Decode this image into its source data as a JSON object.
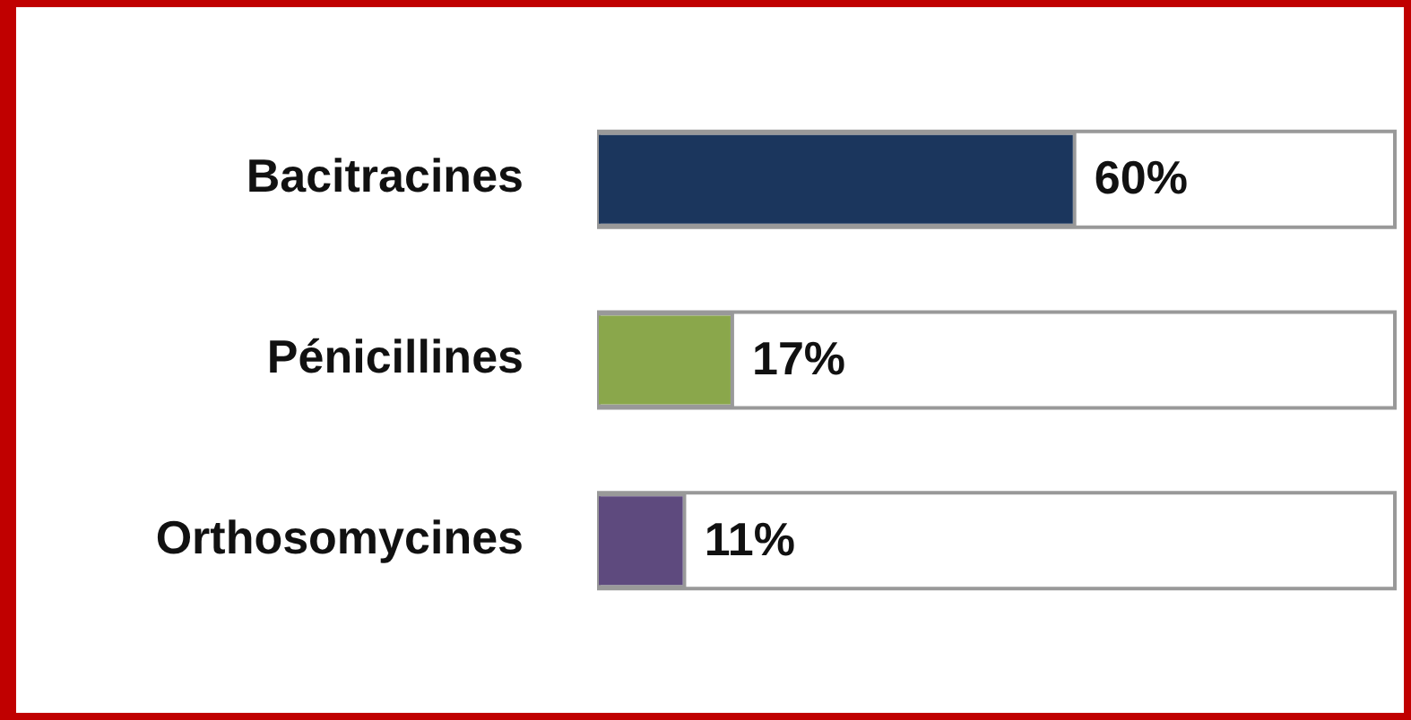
{
  "chart_data": {
    "type": "bar",
    "orientation": "horizontal",
    "categories": [
      "Bacitracines",
      "Pénicillines",
      "Orthosomycines"
    ],
    "values": [
      60,
      17,
      11
    ],
    "colors": [
      "#1b365d",
      "#8aa74b",
      "#5e4a7e"
    ],
    "value_labels": [
      "60%",
      "17%",
      "11%"
    ],
    "xlim": [
      0,
      100
    ],
    "tick_labels": "y",
    "grid": false,
    "legend": false
  }
}
